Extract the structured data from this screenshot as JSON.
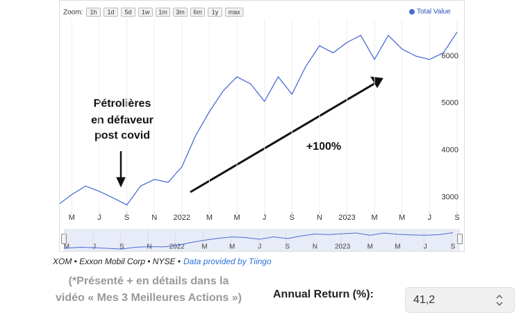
{
  "chart_data": {
    "type": "line",
    "zoom_label": "Zoom:",
    "zoom_buttons": [
      "1h",
      "1d",
      "5d",
      "1w",
      "1m",
      "3m",
      "6m",
      "1y",
      "max"
    ],
    "x": [
      "2021-04",
      "2021-05",
      "2021-06",
      "2021-07",
      "2021-08",
      "2021-09",
      "2021-10",
      "2021-11",
      "2021-12",
      "2022-01",
      "2022-02",
      "2022-03",
      "2022-04",
      "2022-05",
      "2022-06",
      "2022-07",
      "2022-08",
      "2022-09",
      "2022-10",
      "2022-11",
      "2022-12",
      "2023-01",
      "2023-02",
      "2023-03",
      "2023-04",
      "2023-05",
      "2023-06",
      "2023-07",
      "2023-08",
      "2023-09"
    ],
    "series": [
      {
        "name": "Total Value",
        "color": "#4a6cd4",
        "values": [
          2840,
          3060,
          3240,
          3130,
          2990,
          2840,
          3240,
          3380,
          3320,
          3650,
          4310,
          4820,
          5260,
          5560,
          5410,
          5040,
          5560,
          5190,
          5780,
          6220,
          6070,
          6290,
          6440,
          5930,
          6440,
          6150,
          6000,
          5930,
          6070,
          6510
        ]
      }
    ],
    "xlim": [
      "2021-04",
      "2023-09"
    ],
    "xticks": [
      {
        "value": "2021-05",
        "label": "M"
      },
      {
        "value": "2021-07",
        "label": "J"
      },
      {
        "value": "2021-09",
        "label": "S"
      },
      {
        "value": "2021-11",
        "label": "N"
      },
      {
        "value": "2022-01",
        "label": "2022"
      },
      {
        "value": "2022-03",
        "label": "M"
      },
      {
        "value": "2022-05",
        "label": "M"
      },
      {
        "value": "2022-07",
        "label": "J"
      },
      {
        "value": "2022-09",
        "label": "S"
      },
      {
        "value": "2022-11",
        "label": "N"
      },
      {
        "value": "2023-01",
        "label": "2023"
      },
      {
        "value": "2023-03",
        "label": "M"
      },
      {
        "value": "2023-05",
        "label": "M"
      },
      {
        "value": "2023-07",
        "label": "J"
      },
      {
        "value": "2023-09",
        "label": "S"
      }
    ],
    "ylim": [
      2700,
      6750
    ],
    "yticks": [
      3000,
      4000,
      5000,
      6000
    ],
    "grid": true,
    "legend": "top-right",
    "annotations": [
      "Pétrolières",
      "en défaveur",
      "post covid",
      "+100%"
    ]
  },
  "footer": {
    "source": "XOM • Exxon Mobil Corp • NYSE •",
    "link": "Data provided by Tiingo"
  },
  "note": [
    "(*Présenté + en détails dans la",
    "vidéo « Mes 3 Meilleures Actions »)"
  ],
  "return_field": {
    "label": "Annual Return (%):",
    "value": "41,2"
  }
}
